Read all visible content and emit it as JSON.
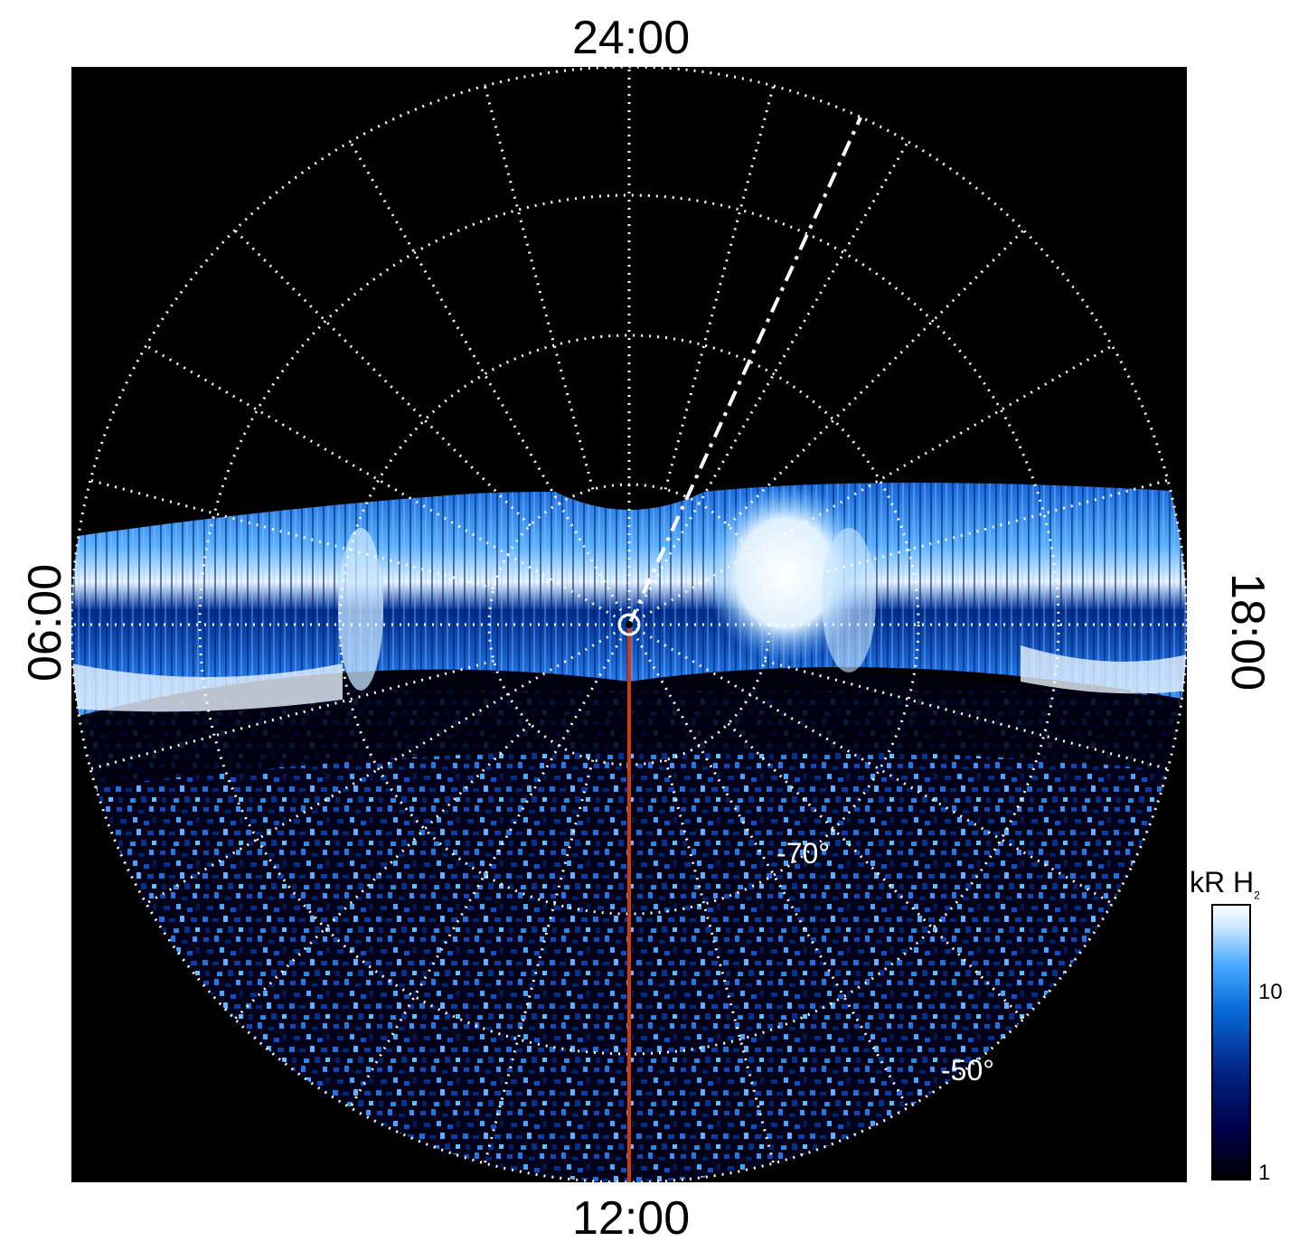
{
  "axis_labels": {
    "top": "24:00",
    "bottom": "12:00",
    "left": "06:00",
    "right": "18:00"
  },
  "latitude_labels": {
    "inner": "-70°",
    "outer": "-50°"
  },
  "colorbar": {
    "title_main": "kR H",
    "title_sub": "2",
    "tick_high": "10",
    "tick_low": "1",
    "colors": [
      "#000000",
      "#00004a",
      "#002080",
      "#0a6ad8",
      "#46a8ff",
      "#c8e6ff",
      "#ffffff"
    ]
  },
  "colors": {
    "background": "#000000",
    "grid": "#ffffff",
    "meridian_line": "#d03a10",
    "aurora_bright": "#ffffff",
    "aurora_mid": "#3a90f0",
    "aurora_dark": "#002080"
  }
}
